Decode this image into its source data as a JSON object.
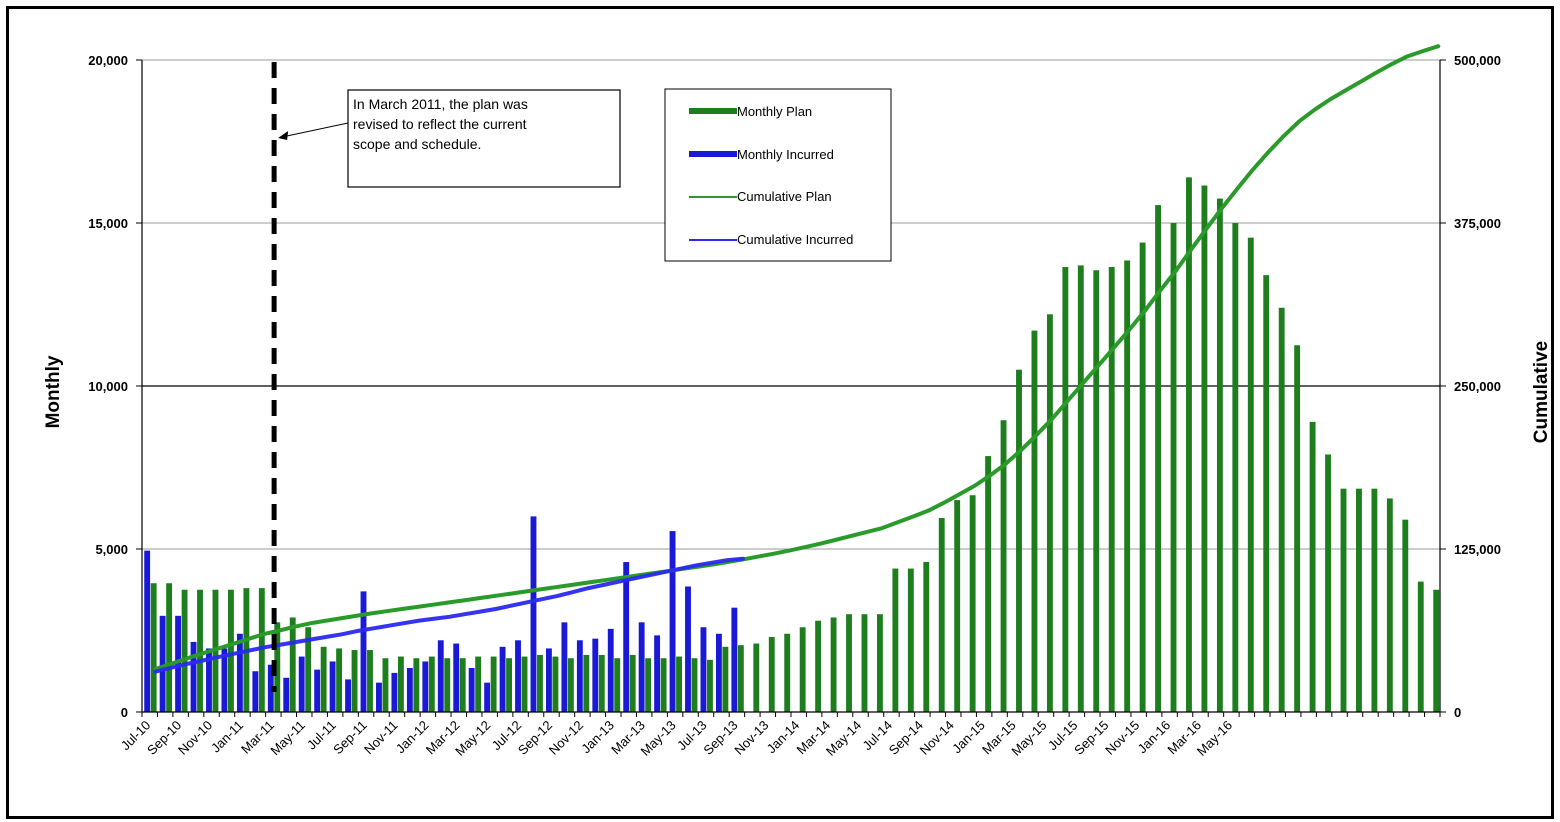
{
  "chart_data": {
    "type": "bar",
    "combo": "bar+line",
    "left_axis": {
      "title": "Monthly",
      "ylim": [
        0,
        20000
      ],
      "ticks": [
        "0",
        "5,000",
        "10,000",
        "15,000",
        "20,000"
      ],
      "tick_values": [
        0,
        5000,
        10000,
        15000,
        20000
      ]
    },
    "right_axis": {
      "title": "Cumulative",
      "ylim": [
        0,
        500000
      ],
      "ticks": [
        "0",
        "125,000",
        "250,000",
        "375,000",
        "500,000"
      ],
      "tick_values": [
        0,
        125000,
        250000,
        375000,
        500000
      ]
    },
    "grid": "horizontal at major ticks",
    "x_start": "2010-07",
    "x_labels": [
      "Jul-10",
      "Sep-10",
      "Nov-10",
      "Jan-11",
      "Mar-11",
      "May-11",
      "Jul-11",
      "Sep-11",
      "Nov-11",
      "Jan-12",
      "Mar-12",
      "May-12",
      "Jul-12",
      "Sep-12",
      "Nov-12",
      "Jan-13",
      "Mar-13",
      "May-13",
      "Jul-13",
      "Sep-13",
      "Nov-13",
      "Jan-14",
      "Mar-14",
      "May-14",
      "Jul-14",
      "Sep-14",
      "Nov-14",
      "Jan-15",
      "Mar-15",
      "May-15",
      "Jul-15",
      "Sep-15",
      "Nov-15",
      "Jan-16",
      "Mar-16",
      "May-16"
    ],
    "legend": {
      "position": "top-center",
      "items": [
        {
          "label": "Monthly Plan",
          "kind": "bar",
          "color": "#1e7e1e"
        },
        {
          "label": "Monthly Incurred",
          "kind": "bar",
          "color": "#1a1ad6"
        },
        {
          "label": "Cumulative Plan",
          "kind": "line",
          "color": "#2a9a2a"
        },
        {
          "label": "Cumulative Incurred",
          "kind": "line",
          "color": "#2a2af0"
        }
      ]
    },
    "annotation": {
      "text_lines": [
        "In March 2011, the plan was",
        "revised to reflect the current",
        "scope and schedule."
      ],
      "marker_month": "Mar-11"
    },
    "series": [
      {
        "name": "Monthly Plan",
        "axis": "left",
        "color": "#1e7e1e",
        "values": [
          3950,
          3950,
          3750,
          3750,
          3750,
          3750,
          3800,
          3800,
          2750,
          2900,
          2600,
          2000,
          1950,
          1900,
          1900,
          1650,
          1700,
          1650,
          1700,
          1650,
          1650,
          1700,
          1700,
          1650,
          1700,
          1750,
          1700,
          1650,
          1750,
          1750,
          1650,
          1750,
          1650,
          1650,
          1700,
          1650,
          1600,
          2000,
          2050,
          2100,
          2300,
          2400,
          2600,
          2800,
          2900,
          3000,
          3000,
          3000,
          4400,
          4400,
          4600,
          5950,
          6500,
          6650,
          7850,
          8950,
          10500,
          11700,
          12200,
          13650,
          13700,
          13550,
          13650,
          13850,
          14400,
          15550,
          15000,
          16400,
          16150,
          15750,
          15000,
          14550,
          13400,
          12400,
          11250,
          8900,
          7900,
          6850,
          6850,
          6850,
          6550,
          5900,
          4000,
          3750
        ]
      },
      {
        "name": "Monthly Incurred",
        "axis": "left",
        "color": "#1a1ad6",
        "values": [
          4950,
          2950,
          2950,
          2150,
          1950,
          1950,
          2400,
          1250,
          1450,
          1050,
          1700,
          1300,
          1550,
          1000,
          3700,
          900,
          1200,
          1350,
          1550,
          2200,
          2100,
          1350,
          900,
          2000,
          2200,
          6000,
          1950,
          2750,
          2200,
          2250,
          2550,
          4600,
          2750,
          2350,
          5550,
          3850,
          2600,
          2400,
          3200
        ]
      },
      {
        "name": "Cumulative Plan",
        "axis": "right",
        "color": "#2a9a2a",
        "values": [
          33000,
          37000,
          41000,
          44800,
          48500,
          52200,
          56000,
          59800,
          62500,
          65400,
          68000,
          70000,
          71900,
          73800,
          75700,
          77400,
          79100,
          80700,
          82400,
          84100,
          85700,
          87400,
          89100,
          90800,
          92500,
          94200,
          95900,
          97600,
          99300,
          101000,
          102700,
          104400,
          106100,
          107800,
          109600,
          111300,
          113000,
          115000,
          117000,
          119200,
          121400,
          123800,
          126400,
          129100,
          132000,
          135000,
          138000,
          141000,
          145400,
          149800,
          154400,
          160400,
          166900,
          173500,
          181400,
          190300,
          200800,
          212500,
          224700,
          238400,
          252100,
          265600,
          279300,
          293100,
          307500,
          323100,
          338100,
          354500,
          370600,
          386400,
          401400,
          415900,
          429300,
          441700,
          453000,
          461900,
          469800,
          476700,
          483500,
          490400,
          496900,
          502800,
          506800,
          510600
        ]
      },
      {
        "name": "Cumulative Incurred",
        "axis": "right",
        "color": "#2a2af0",
        "values": [
          31000,
          34000,
          36800,
          39400,
          42000,
          44500,
          47000,
          49500,
          51500,
          53500,
          55500,
          57500,
          59500,
          62000,
          64000,
          66000,
          68000,
          70000,
          71500,
          73000,
          75000,
          77000,
          79000,
          81500,
          84000,
          86500,
          89000,
          92000,
          95000,
          97500,
          100000,
          102500,
          105000,
          107500,
          110000,
          112500,
          114500,
          116500,
          117500
        ]
      }
    ]
  }
}
